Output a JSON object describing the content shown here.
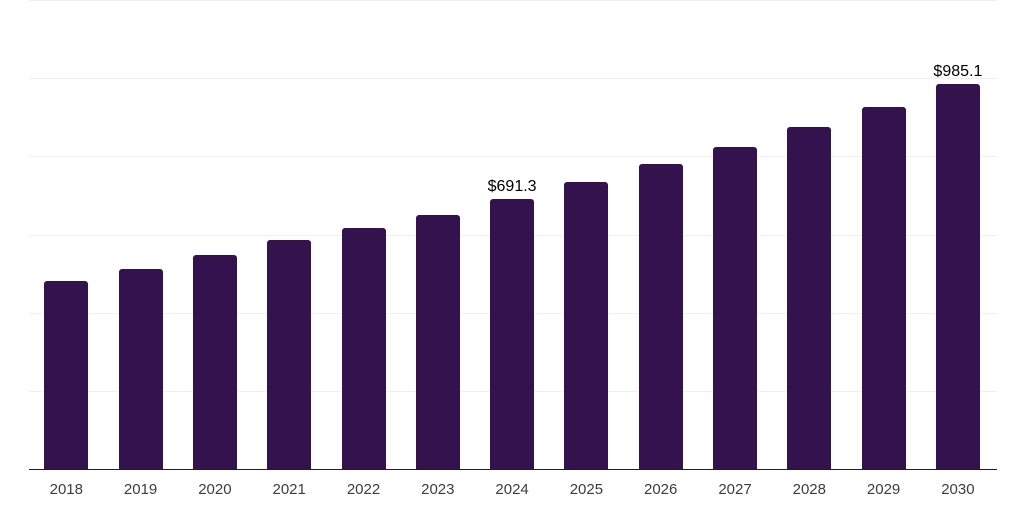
{
  "chart_data": {
    "type": "bar",
    "categories": [
      "2018",
      "2019",
      "2020",
      "2021",
      "2022",
      "2023",
      "2024",
      "2025",
      "2026",
      "2027",
      "2028",
      "2029",
      "2030"
    ],
    "values": [
      480,
      512,
      548,
      587,
      617,
      651,
      691.3,
      735,
      781,
      823,
      875,
      927,
      985.1
    ],
    "value_labels": [
      "",
      "",
      "",
      "",
      "",
      "",
      "$691.3",
      "",
      "",
      "",
      "",
      "",
      "$985.1"
    ],
    "xlabel": "",
    "ylabel": "",
    "ylim": [
      0,
      1200
    ],
    "gridline_step": 200,
    "grid": true,
    "legend": false,
    "y_axis_labels_visible": false,
    "colors": {
      "bar": "#33124d",
      "grid": "#f0f0f1",
      "axis": "#1f1f1f",
      "value_label": "#000000",
      "tick_label": "#3d3d3d",
      "background": "#ffffff"
    }
  }
}
